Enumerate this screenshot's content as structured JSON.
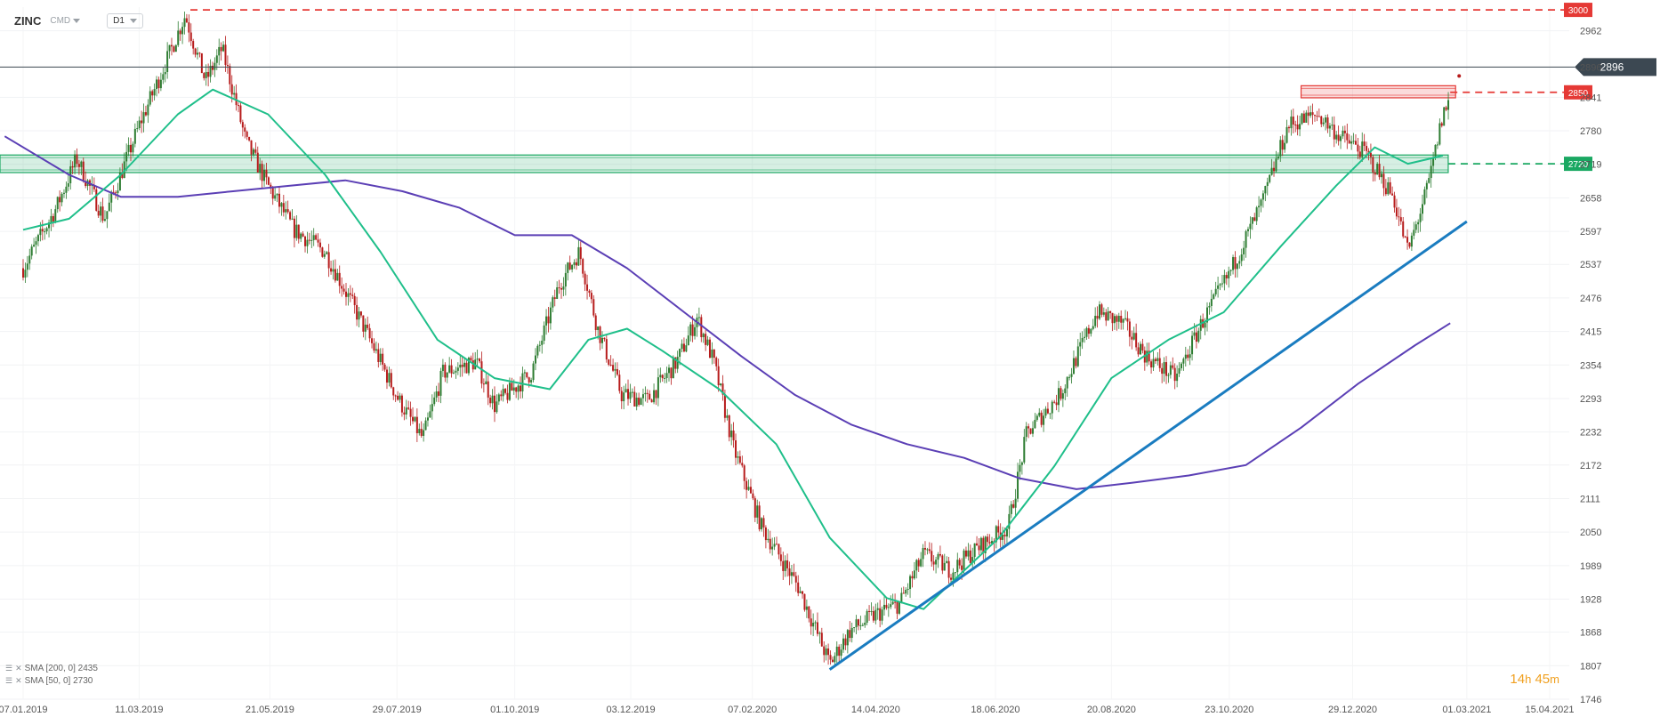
{
  "header": {
    "symbol": "ZINC",
    "instrument_type": "CMD",
    "timeframe": "D1"
  },
  "indicators": [
    {
      "label": "SMA [200, 0] 2435",
      "color": "#5b3fb5"
    },
    {
      "label": "SMA [50, 0] 2730",
      "color": "#1fbf8a"
    }
  ],
  "countdown": {
    "hours": "14",
    "h_unit": "h",
    "minutes": "45",
    "m_unit": "m"
  },
  "levels": [
    {
      "value": 3000,
      "label": "3000",
      "color": "#e53935",
      "style": "dashed"
    },
    {
      "value": 2896,
      "label": "2896",
      "color": "#3c4852",
      "style": "solid"
    },
    {
      "value": 2850,
      "label": "2850",
      "color": "#e53935",
      "style": "dashed"
    },
    {
      "value": 2720,
      "label": "2720",
      "color": "#1aa862",
      "style": "dashed"
    }
  ],
  "zones": [
    {
      "from": 2704,
      "to": 2736,
      "start_date": "07.01.2019",
      "end_date": "2021-02-16",
      "color": "#1aa862"
    },
    {
      "from": 2840,
      "to": 2862,
      "start_date": "2020-12-01",
      "end_date": "2021-02-20",
      "color": "#e53935"
    }
  ],
  "chart_data": {
    "type": "candlestick",
    "y_ticks": [
      "2962",
      "2896",
      "2841",
      "2780",
      "2719",
      "2658",
      "2597",
      "2537",
      "2476",
      "2415",
      "2354",
      "2293",
      "2232",
      "2172",
      "2111",
      "2050",
      "1989",
      "1928",
      "1868",
      "1807",
      "1746"
    ],
    "x_ticks": [
      "07.01.2019",
      "11.03.2019",
      "21.05.2019",
      "29.07.2019",
      "01.10.2019",
      "03.12.2019",
      "07.02.2020",
      "14.04.2020",
      "18.06.2020",
      "20.08.2020",
      "23.10.2020",
      "29.12.2020",
      "01.03.2021",
      "15.04.2021"
    ],
    "ylim": [
      1746,
      3005
    ],
    "colors": {
      "up": "#2e7d32",
      "down": "#b71c1c"
    },
    "price_path": [
      [
        "2019-01-07",
        2530
      ],
      [
        "2019-01-25",
        2640
      ],
      [
        "2019-02-05",
        2730
      ],
      [
        "2019-02-20",
        2620
      ],
      [
        "2019-03-11",
        2790
      ],
      [
        "2019-03-25",
        2900
      ],
      [
        "2019-04-05",
        2990
      ],
      [
        "2019-04-16",
        2870
      ],
      [
        "2019-04-25",
        2930
      ],
      [
        "2019-05-08",
        2760
      ],
      [
        "2019-05-20",
        2680
      ],
      [
        "2019-06-03",
        2600
      ],
      [
        "2019-06-20",
        2560
      ],
      [
        "2019-07-10",
        2430
      ],
      [
        "2019-07-30",
        2290
      ],
      [
        "2019-08-12",
        2220
      ],
      [
        "2019-08-23",
        2340
      ],
      [
        "2019-09-10",
        2360
      ],
      [
        "2019-09-20",
        2280
      ],
      [
        "2019-10-10",
        2340
      ],
      [
        "2019-10-25",
        2500
      ],
      [
        "2019-11-05",
        2560
      ],
      [
        "2019-11-15",
        2420
      ],
      [
        "2019-11-28",
        2300
      ],
      [
        "2019-12-12",
        2290
      ],
      [
        "2019-12-28",
        2360
      ],
      [
        "2020-01-08",
        2440
      ],
      [
        "2020-01-17",
        2360
      ],
      [
        "2020-01-28",
        2200
      ],
      [
        "2020-02-12",
        2060
      ],
      [
        "2020-03-03",
        1950
      ],
      [
        "2020-03-20",
        1810
      ],
      [
        "2020-03-31",
        1870
      ],
      [
        "2020-04-14",
        1900
      ],
      [
        "2020-04-27",
        1920
      ],
      [
        "2020-05-10",
        2010
      ],
      [
        "2020-05-25",
        1980
      ],
      [
        "2020-06-08",
        2020
      ],
      [
        "2020-06-25",
        2060
      ],
      [
        "2020-07-05",
        2230
      ],
      [
        "2020-07-23",
        2300
      ],
      [
        "2020-08-12",
        2450
      ],
      [
        "2020-08-26",
        2430
      ],
      [
        "2020-09-08",
        2370
      ],
      [
        "2020-09-24",
        2330
      ],
      [
        "2020-10-08",
        2430
      ],
      [
        "2020-10-23",
        2520
      ],
      [
        "2020-11-10",
        2650
      ],
      [
        "2020-11-24",
        2790
      ],
      [
        "2020-12-10",
        2810
      ],
      [
        "2020-12-22",
        2770
      ],
      [
        "2021-01-05",
        2740
      ],
      [
        "2021-01-20",
        2660
      ],
      [
        "2021-01-28",
        2560
      ],
      [
        "2021-02-08",
        2680
      ],
      [
        "2021-02-16",
        2810
      ],
      [
        "2021-02-20",
        2840
      ]
    ],
    "overlays": [
      {
        "name": "SMA [200, 0]",
        "color": "#5b3fb5",
        "points": [
          [
            "2018-12-28",
            2770
          ],
          [
            "2019-02-01",
            2700
          ],
          [
            "2019-03-01",
            2660
          ],
          [
            "2019-04-01",
            2660
          ],
          [
            "2019-05-01",
            2670
          ],
          [
            "2019-06-01",
            2680
          ],
          [
            "2019-07-01",
            2690
          ],
          [
            "2019-08-01",
            2670
          ],
          [
            "2019-09-01",
            2640
          ],
          [
            "2019-10-01",
            2590
          ],
          [
            "2019-11-01",
            2590
          ],
          [
            "2019-12-01",
            2530
          ],
          [
            "2020-01-01",
            2450
          ],
          [
            "2020-02-01",
            2370
          ],
          [
            "2020-03-01",
            2300
          ],
          [
            "2020-04-01",
            2245
          ],
          [
            "2020-05-01",
            2210
          ],
          [
            "2020-06-01",
            2185
          ],
          [
            "2020-07-01",
            2148
          ],
          [
            "2020-08-01",
            2128
          ],
          [
            "2020-09-01",
            2140
          ],
          [
            "2020-10-01",
            2153
          ],
          [
            "2020-11-01",
            2172
          ],
          [
            "2020-12-01",
            2240
          ],
          [
            "2021-01-01",
            2320
          ],
          [
            "2021-02-01",
            2390
          ],
          [
            "2021-02-20",
            2430
          ]
        ]
      },
      {
        "name": "SMA [50, 0]",
        "color": "#1fbf8a",
        "points": [
          [
            "2019-01-07",
            2600
          ],
          [
            "2019-02-01",
            2620
          ],
          [
            "2019-03-01",
            2700
          ],
          [
            "2019-04-01",
            2810
          ],
          [
            "2019-04-20",
            2855
          ],
          [
            "2019-05-20",
            2810
          ],
          [
            "2019-06-20",
            2700
          ],
          [
            "2019-07-20",
            2560
          ],
          [
            "2019-08-20",
            2400
          ],
          [
            "2019-09-20",
            2330
          ],
          [
            "2019-10-20",
            2310
          ],
          [
            "2019-11-10",
            2400
          ],
          [
            "2019-12-01",
            2420
          ],
          [
            "2019-12-20",
            2380
          ],
          [
            "2020-01-20",
            2310
          ],
          [
            "2020-02-20",
            2210
          ],
          [
            "2020-03-20",
            2040
          ],
          [
            "2020-04-20",
            1930
          ],
          [
            "2020-05-10",
            1910
          ],
          [
            "2020-06-01",
            1980
          ],
          [
            "2020-06-20",
            2040
          ],
          [
            "2020-07-20",
            2170
          ],
          [
            "2020-08-20",
            2330
          ],
          [
            "2020-09-20",
            2400
          ],
          [
            "2020-10-20",
            2450
          ],
          [
            "2020-11-20",
            2570
          ],
          [
            "2020-12-20",
            2680
          ],
          [
            "2021-01-10",
            2750
          ],
          [
            "2021-01-28",
            2720
          ],
          [
            "2021-02-10",
            2730
          ],
          [
            "2021-02-16",
            2735
          ]
        ]
      }
    ],
    "trendlines": [
      {
        "color": "#1a7cc0",
        "from": [
          "2020-03-20",
          1800
        ],
        "to": [
          "2021-03-01",
          2615
        ]
      }
    ],
    "last_price": {
      "date": "2021-02-20",
      "value": 2896
    }
  }
}
